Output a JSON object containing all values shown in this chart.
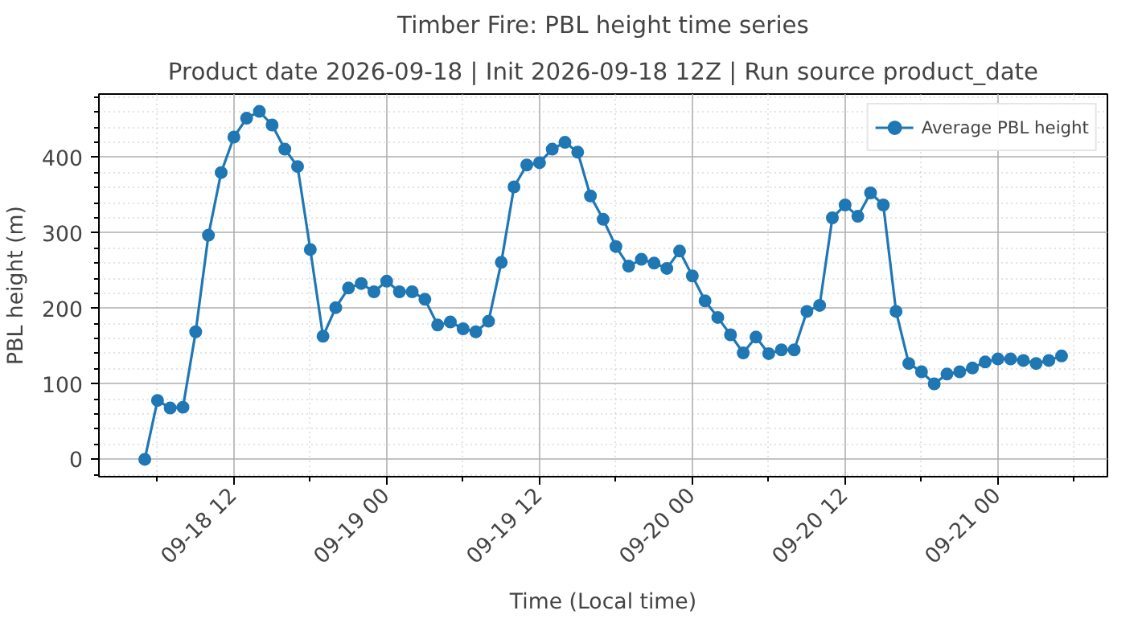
{
  "chart_data": {
    "type": "line",
    "title": "Timber Fire: PBL height time series",
    "subtitle": "Product date 2026-09-18 | Init 2026-09-18 12Z | Run source product_date",
    "xlabel": "Time (Local time)",
    "ylabel": "PBL height (m)",
    "x": [
      "2026-09-18T05:00",
      "2026-09-18T06:00",
      "2026-09-18T07:00",
      "2026-09-18T08:00",
      "2026-09-18T09:00",
      "2026-09-18T10:00",
      "2026-09-18T11:00",
      "2026-09-18T12:00",
      "2026-09-18T13:00",
      "2026-09-18T14:00",
      "2026-09-18T15:00",
      "2026-09-18T16:00",
      "2026-09-18T17:00",
      "2026-09-18T18:00",
      "2026-09-18T19:00",
      "2026-09-18T20:00",
      "2026-09-18T21:00",
      "2026-09-18T22:00",
      "2026-09-18T23:00",
      "2026-09-19T00:00",
      "2026-09-19T01:00",
      "2026-09-19T02:00",
      "2026-09-19T03:00",
      "2026-09-19T04:00",
      "2026-09-19T05:00",
      "2026-09-19T06:00",
      "2026-09-19T07:00",
      "2026-09-19T08:00",
      "2026-09-19T09:00",
      "2026-09-19T10:00",
      "2026-09-19T11:00",
      "2026-09-19T12:00",
      "2026-09-19T13:00",
      "2026-09-19T14:00",
      "2026-09-19T15:00",
      "2026-09-19T16:00",
      "2026-09-19T17:00",
      "2026-09-19T18:00",
      "2026-09-19T19:00",
      "2026-09-19T20:00",
      "2026-09-19T21:00",
      "2026-09-19T22:00",
      "2026-09-19T23:00",
      "2026-09-20T00:00",
      "2026-09-20T01:00",
      "2026-09-20T02:00",
      "2026-09-20T03:00",
      "2026-09-20T04:00",
      "2026-09-20T05:00",
      "2026-09-20T06:00",
      "2026-09-20T07:00",
      "2026-09-20T08:00",
      "2026-09-20T09:00",
      "2026-09-20T10:00",
      "2026-09-20T11:00",
      "2026-09-20T12:00",
      "2026-09-20T13:00",
      "2026-09-20T14:00",
      "2026-09-20T15:00",
      "2026-09-20T16:00",
      "2026-09-20T17:00",
      "2026-09-20T18:00",
      "2026-09-20T19:00",
      "2026-09-20T20:00",
      "2026-09-20T21:00",
      "2026-09-20T22:00",
      "2026-09-20T23:00",
      "2026-09-21T00:00",
      "2026-09-21T01:00",
      "2026-09-21T02:00",
      "2026-09-21T03:00",
      "2026-09-21T04:00",
      "2026-09-21T05:00"
    ],
    "series": [
      {
        "name": "Average PBL height",
        "color": "#1f77b4",
        "values": [
          0,
          78,
          68,
          69,
          169,
          297,
          380,
          427,
          452,
          461,
          443,
          411,
          388,
          278,
          163,
          201,
          227,
          233,
          222,
          236,
          222,
          222,
          212,
          178,
          182,
          173,
          169,
          183,
          261,
          361,
          390,
          393,
          411,
          420,
          407,
          349,
          318,
          282,
          256,
          265,
          260,
          253,
          276,
          243,
          210,
          188,
          165,
          141,
          162,
          140,
          145,
          145,
          196,
          204,
          320,
          337,
          322,
          353,
          337,
          196,
          127,
          116,
          100,
          113,
          116,
          121,
          129,
          133,
          133,
          131,
          127,
          131,
          137
        ]
      }
    ],
    "xlim": [
      "2026-09-18T01:24",
      "2026-09-21T08:36"
    ],
    "xticks": [
      {
        "value": "2026-09-18T06:00",
        "label": null
      },
      {
        "value": "2026-09-18T12:00",
        "label": "09-18 12"
      },
      {
        "value": "2026-09-18T18:00",
        "label": null
      },
      {
        "value": "2026-09-19T00:00",
        "label": "09-19 00"
      },
      {
        "value": "2026-09-19T06:00",
        "label": null
      },
      {
        "value": "2026-09-19T12:00",
        "label": "09-19 12"
      },
      {
        "value": "2026-09-19T18:00",
        "label": null
      },
      {
        "value": "2026-09-20T00:00",
        "label": "09-20 00"
      },
      {
        "value": "2026-09-20T06:00",
        "label": null
      },
      {
        "value": "2026-09-20T12:00",
        "label": "09-20 12"
      },
      {
        "value": "2026-09-20T18:00",
        "label": null
      },
      {
        "value": "2026-09-21T00:00",
        "label": "09-21 00"
      },
      {
        "value": "2026-09-21T06:00",
        "label": null
      }
    ],
    "ylim": [
      -23,
      484
    ],
    "yticks": [
      {
        "value": -20,
        "label": null
      },
      0,
      {
        "value": 20,
        "label": null
      },
      {
        "value": 40,
        "label": null
      },
      {
        "value": 60,
        "label": null
      },
      {
        "value": 80,
        "label": null
      },
      100,
      {
        "value": 120,
        "label": null
      },
      {
        "value": 140,
        "label": null
      },
      {
        "value": 160,
        "label": null
      },
      {
        "value": 180,
        "label": null
      },
      200,
      {
        "value": 220,
        "label": null
      },
      {
        "value": 240,
        "label": null
      },
      {
        "value": 260,
        "label": null
      },
      {
        "value": 280,
        "label": null
      },
      300,
      {
        "value": 320,
        "label": null
      },
      {
        "value": 340,
        "label": null
      },
      {
        "value": 360,
        "label": null
      },
      {
        "value": 380,
        "label": null
      },
      400,
      {
        "value": 420,
        "label": null
      },
      {
        "value": 440,
        "label": null
      },
      {
        "value": 460,
        "label": null
      },
      {
        "value": 480,
        "label": null
      }
    ],
    "grid": true,
    "legend": "top right",
    "marker": "circle",
    "line_style": "solid"
  }
}
